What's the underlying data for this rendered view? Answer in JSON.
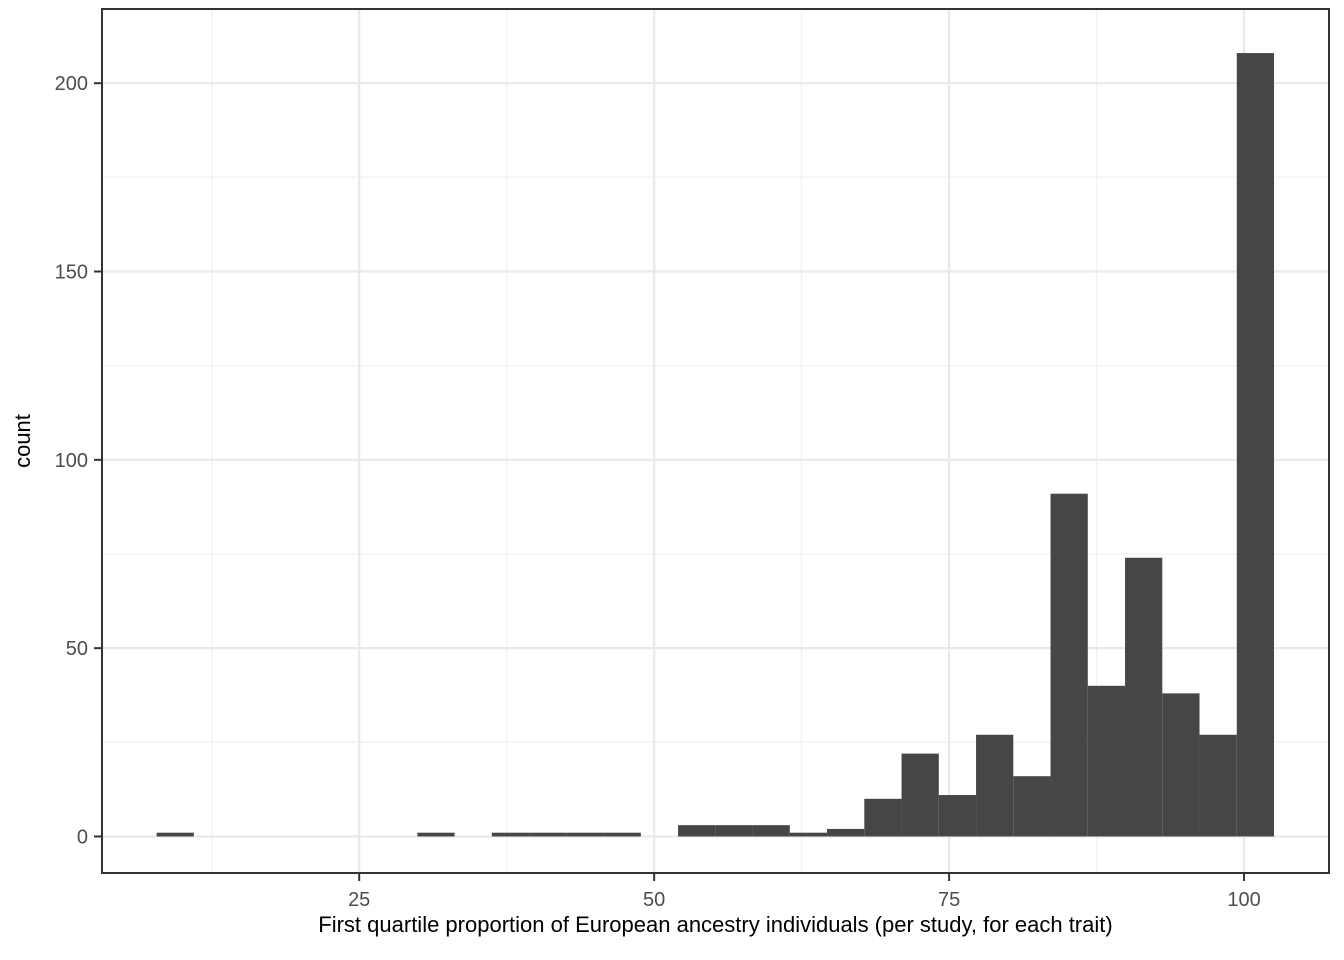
{
  "chart_data": {
    "type": "bar",
    "subtype": "histogram",
    "title": "",
    "xlabel": "First quartile proportion of European ancestry individuals (per study, for each trait)",
    "ylabel": "count",
    "bin_start": 7.83,
    "bin_width": 3.157,
    "counts": [
      1,
      0,
      0,
      0,
      0,
      0,
      0,
      1,
      0,
      1,
      1,
      1,
      1,
      0,
      3,
      3,
      3,
      1,
      2,
      10,
      22,
      11,
      27,
      16,
      91,
      40,
      74,
      38,
      27,
      208
    ],
    "x_ticks": [
      25,
      50,
      75,
      100
    ],
    "y_ticks": [
      0,
      50,
      100,
      150,
      200
    ],
    "x_minor_ticks": [
      12.5,
      37.5,
      62.5,
      87.5
    ],
    "y_minor_ticks": [
      25,
      75,
      125,
      175
    ],
    "xlim": [
      3.2,
      107.2
    ],
    "ylim": [
      -9.7,
      219.7
    ],
    "grid": "major-and-minor",
    "legend": "none",
    "colors": {
      "bar_fill": "#464646",
      "panel_border": "#333333",
      "grid_major": "#e9e9e9",
      "grid_minor": "#f3f3f3",
      "tick_mark": "#333333",
      "tick_label": "#4d4d4d",
      "axis_title": "#000000",
      "background": "#ffffff"
    }
  }
}
